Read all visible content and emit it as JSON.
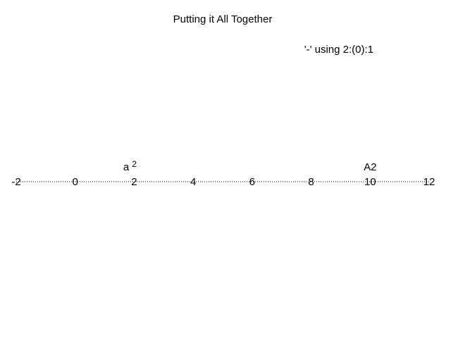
{
  "chart_data": {
    "type": "scatter",
    "title": "Putting it All Together",
    "legend": {
      "label": "'-' using 2:(0):1",
      "placement": "top-right"
    },
    "x_ticks": [
      "-2",
      "0",
      "2",
      "4",
      "6",
      "8",
      "10",
      "12"
    ],
    "xlim": [
      -2,
      12
    ],
    "axis_style": "dotted",
    "points": [
      {
        "x": 2,
        "y": 0,
        "label": "a",
        "superscript": "2"
      },
      {
        "x": 10,
        "y": 0,
        "label": "A2",
        "superscript": ""
      }
    ]
  }
}
